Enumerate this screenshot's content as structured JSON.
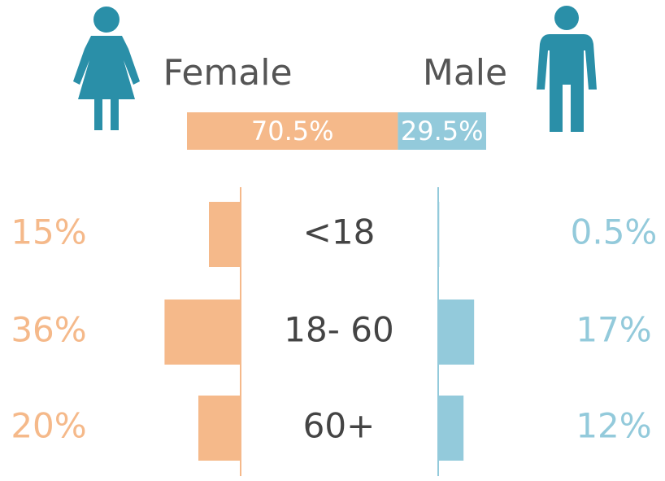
{
  "chart_data": {
    "type": "pyramid",
    "totals": {
      "values": [
        70.5,
        29.5
      ],
      "value_labels": [
        "70.5%",
        "29.5%"
      ]
    },
    "categories": [
      "<18",
      "18- 60",
      "60+"
    ],
    "series": [
      {
        "name": "Female",
        "color": "#f5b98a",
        "values": [
          15,
          36,
          20
        ],
        "value_labels": [
          "15%",
          "36%",
          "20%"
        ]
      },
      {
        "name": "Male",
        "color": "#93cadb",
        "values": [
          0.5,
          17,
          12
        ],
        "value_labels": [
          "0.5%",
          "17%",
          "12%"
        ]
      }
    ]
  }
}
